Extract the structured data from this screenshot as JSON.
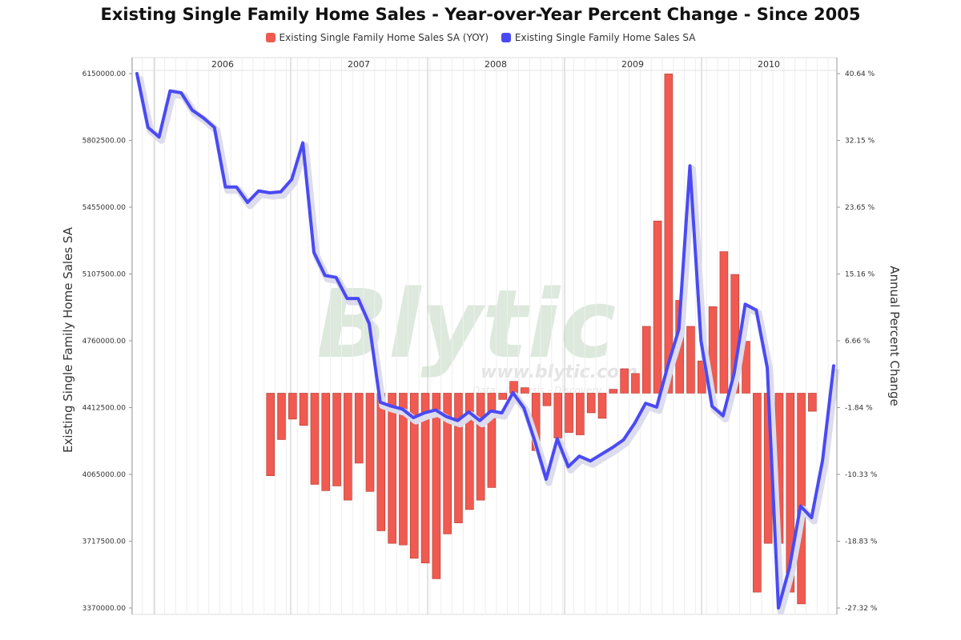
{
  "chart_data": {
    "type": "bar+line",
    "title": "Existing Single Family Home Sales - Year-over-Year Percent Change - Since 2005",
    "legend": {
      "placement": "top-center"
    },
    "series": [
      {
        "name": "Existing Single Family Home Sales SA (YOY)",
        "type": "bar",
        "axis": "right",
        "color": "#f05a50"
      },
      {
        "name": "Existing Single Family Home Sales SA",
        "type": "line",
        "axis": "left",
        "color": "#4a4af4"
      }
    ],
    "x": {
      "year_labels": [
        "2006",
        "2007",
        "2008",
        "2009",
        "2010"
      ],
      "grid": true
    },
    "y_left": {
      "title": "Existing Single Family Home Sales SA",
      "range": [
        3370000,
        6150000
      ],
      "ticks": [
        "6150000.00",
        "5802500.00",
        "5455000.00",
        "5107500.00",
        "4760000.00",
        "4412500.00",
        "4065000.00",
        "3717500.00",
        "3370000.00"
      ]
    },
    "y_right": {
      "title": "Annual Percent Change",
      "range": [
        -27.32,
        40.64
      ],
      "ticks": [
        "40.64 %",
        "32.15 %",
        "23.65 %",
        "15.16 %",
        "6.66 %",
        "-1.84 %",
        "-10.33 %",
        "-18.83 %",
        "-27.32 %"
      ]
    },
    "line_values": [
      6150000,
      5870000,
      5820000,
      6060000,
      6050000,
      5960000,
      5920000,
      5870000,
      5560000,
      5560000,
      5480000,
      5540000,
      5530000,
      5535000,
      5600000,
      5790000,
      5220000,
      5100000,
      5090000,
      4980000,
      4980000,
      4850000,
      4440000,
      4420000,
      4405000,
      4360000,
      4385000,
      4400000,
      4365000,
      4345000,
      4390000,
      4345000,
      4395000,
      4385000,
      4490000,
      4410000,
      4235000,
      4040000,
      4250000,
      4105000,
      4160000,
      4135000,
      4170000,
      4205000,
      4245000,
      4330000,
      4435000,
      4415000,
      4630000,
      4820000,
      5670000,
      4760000,
      4420000,
      4370000,
      4590000,
      4950000,
      4920000,
      4620000,
      3370000,
      3580000,
      3900000,
      3840000,
      4140000,
      4630000
    ],
    "bar_values": [
      null,
      null,
      null,
      null,
      null,
      null,
      null,
      null,
      null,
      null,
      null,
      null,
      -10.5,
      -5.9,
      -3.3,
      -4.1,
      -11.6,
      -12.4,
      -11.8,
      -13.6,
      -8.9,
      -12.5,
      -17.5,
      -19.1,
      -19.3,
      -21.0,
      -21.6,
      -23.6,
      -17.9,
      -16.5,
      -14.8,
      -13.6,
      -12.0,
      -0.8,
      1.5,
      0.7,
      -7.3,
      -1.6,
      -5.7,
      -5.0,
      -5.3,
      -2.5,
      -3.2,
      0.5,
      3.1,
      2.5,
      8.5,
      21.9,
      40.6,
      11.8,
      8.5,
      4.1,
      11.0,
      18.0,
      15.1,
      6.6,
      -25.3,
      -19.1,
      -19.1,
      -25.3,
      -26.8,
      -2.3,
      null,
      null
    ]
  }
}
